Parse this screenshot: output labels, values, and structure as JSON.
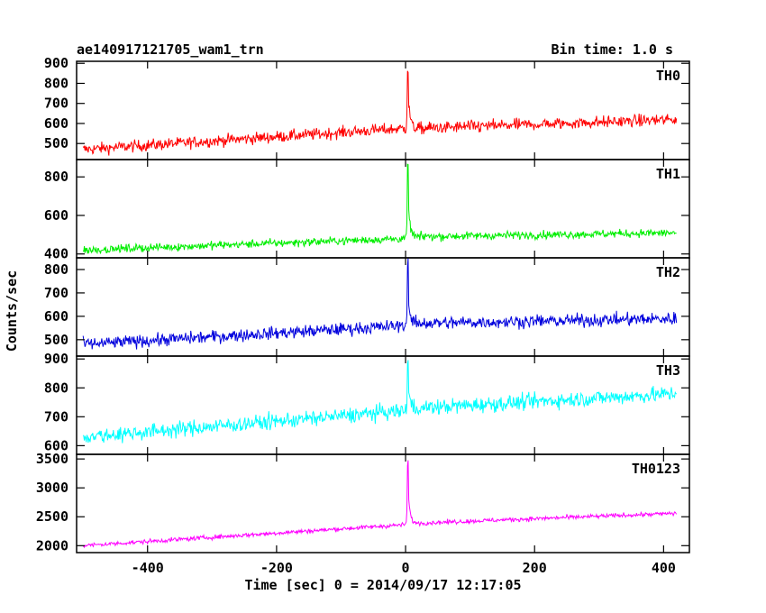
{
  "chart_data": {
    "type": "line",
    "title": "ae140917121705_wam1_trn",
    "bin_time_label": "Bin time: 1.0 s",
    "xlabel": "Time [sec] 0 = 2014/09/17 12:17:05",
    "ylabel": "Counts/sec",
    "xlim": [
      -510,
      440
    ],
    "xticks": [
      -400,
      -200,
      0,
      200,
      400
    ],
    "panels": [
      {
        "name": "TH0",
        "color": "#ff0000",
        "ylim": [
          420,
          910
        ],
        "yticks": [
          500,
          600,
          700,
          800,
          900
        ],
        "model": {
          "start": [
            -500,
            470
          ],
          "pre": [
            -5,
            575
          ],
          "post": [
            20,
            575
          ],
          "end": [
            420,
            620
          ],
          "noise": 35,
          "peak": {
            "t": 3,
            "v": 900
          }
        }
      },
      {
        "name": "TH1",
        "color": "#00ee00",
        "ylim": [
          380,
          890
        ],
        "yticks": [
          400,
          600,
          800
        ],
        "model": {
          "start": [
            -500,
            420
          ],
          "pre": [
            -5,
            480
          ],
          "post": [
            20,
            490
          ],
          "end": [
            420,
            510
          ],
          "noise": 25,
          "peak": {
            "t": 3,
            "v": 860
          }
        }
      },
      {
        "name": "TH2",
        "color": "#0000dd",
        "ylim": [
          430,
          850
        ],
        "yticks": [
          500,
          600,
          700,
          800
        ],
        "model": {
          "start": [
            -500,
            480
          ],
          "pre": [
            -5,
            560
          ],
          "post": [
            20,
            570
          ],
          "end": [
            420,
            590
          ],
          "noise": 32,
          "peak": {
            "t": 3,
            "v": 840
          }
        }
      },
      {
        "name": "TH3",
        "color": "#00ffff",
        "ylim": [
          570,
          910
        ],
        "yticks": [
          600,
          700,
          800,
          900
        ],
        "model": {
          "start": [
            -500,
            630
          ],
          "pre": [
            -5,
            720
          ],
          "post": [
            20,
            730
          ],
          "end": [
            420,
            780
          ],
          "noise": 32,
          "peak": {
            "t": 3,
            "v": 900
          }
        }
      },
      {
        "name": "TH0123",
        "color": "#ff00ff",
        "ylim": [
          1880,
          3580
        ],
        "yticks": [
          2000,
          2500,
          3000,
          3500
        ],
        "model": {
          "start": [
            -500,
            2000
          ],
          "pre": [
            -5,
            2360
          ],
          "post": [
            20,
            2390
          ],
          "end": [
            420,
            2560
          ],
          "noise": 45,
          "peak": {
            "t": 3,
            "v": 3500
          }
        }
      }
    ]
  }
}
